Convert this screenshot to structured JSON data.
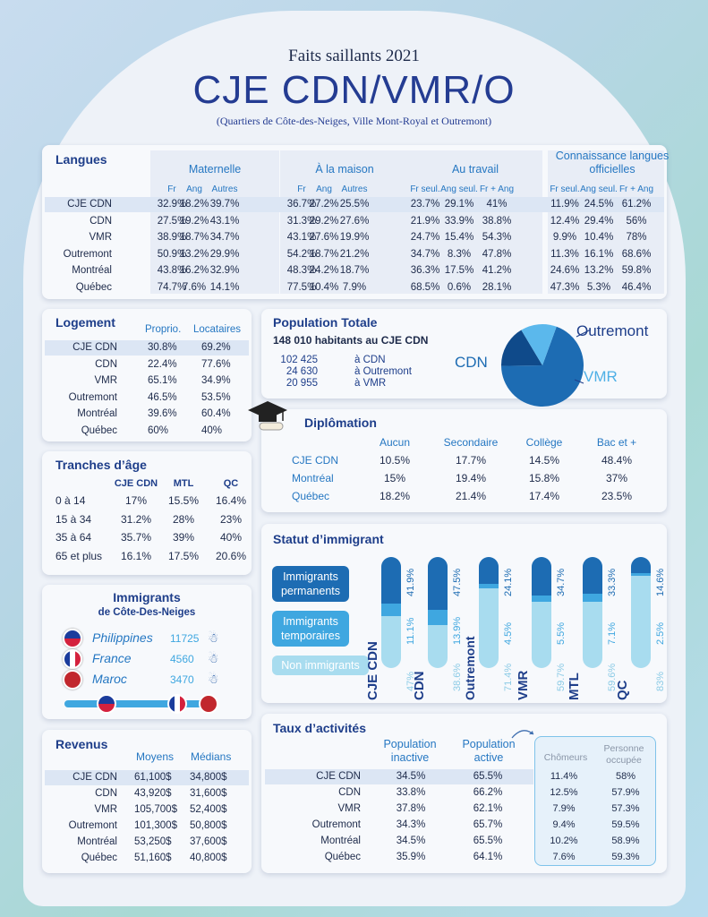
{
  "header": {
    "kicker": "Faits saillants 2021",
    "title": "CJE CDN/VMR/O",
    "subtitle": "(Quartiers de Côte-des-Neiges, Ville Mont-Royal et Outremont)"
  },
  "langues": {
    "title": "Langues",
    "groups": [
      "Maternelle",
      "À la maison",
      "Au travail",
      "Connaissance langues officielles"
    ],
    "subheads": [
      "Fr",
      "Ang",
      "Autres",
      "Fr",
      "Ang",
      "Autres",
      "Fr seul.",
      "Ang seul.",
      "Fr + Ang",
      "Fr seul.",
      "Ang seul.",
      "Fr + Ang"
    ],
    "rows": [
      {
        "label": "CJE CDN",
        "values": [
          "32.9%",
          "18.2%",
          "39.7%",
          "36.7%",
          "27.2%",
          "25.5%",
          "23.7%",
          "29.1%",
          "41%",
          "11.9%",
          "24.5%",
          "61.2%"
        ]
      },
      {
        "label": "CDN",
        "values": [
          "27.5%",
          "19.2%",
          "43.1%",
          "31.3%",
          "29.2%",
          "27.6%",
          "21.9%",
          "33.9%",
          "38.8%",
          "12.4%",
          "29.4%",
          "56%"
        ]
      },
      {
        "label": "VMR",
        "values": [
          "38.9%",
          "18.7%",
          "34.7%",
          "43.1%",
          "27.6%",
          "19.9%",
          "24.7%",
          "15.4%",
          "54.3%",
          "9.9%",
          "10.4%",
          "78%"
        ]
      },
      {
        "label": "Outremont",
        "values": [
          "50.9%",
          "13.2%",
          "29.9%",
          "54.2%",
          "18.7%",
          "21.2%",
          "34.7%",
          "8.3%",
          "47.8%",
          "11.3%",
          "16.1%",
          "68.6%"
        ]
      },
      {
        "label": "Montréal",
        "values": [
          "43.8%",
          "16.2%",
          "32.9%",
          "48.3%",
          "24.2%",
          "18.7%",
          "36.3%",
          "17.5%",
          "41.2%",
          "24.6%",
          "13.2%",
          "59.8%"
        ]
      },
      {
        "label": "Québec",
        "values": [
          "74.7%",
          "7.6%",
          "14.1%",
          "77.5%",
          "10.4%",
          "7.9%",
          "68.5%",
          "0.6%",
          "28.1%",
          "47.3%",
          "5.3%",
          "46.4%"
        ]
      }
    ]
  },
  "logement": {
    "title": "Logement",
    "cols": [
      "Proprio.",
      "Locataires"
    ],
    "rows": [
      [
        "CJE CDN",
        "30.8%",
        "69.2%"
      ],
      [
        "CDN",
        "22.4%",
        "77.6%"
      ],
      [
        "VMR",
        "65.1%",
        "34.9%"
      ],
      [
        "Outremont",
        "46.5%",
        "53.5%"
      ],
      [
        "Montréal",
        "39.6%",
        "60.4%"
      ],
      [
        "Québec",
        "60%",
        "40%"
      ]
    ]
  },
  "population": {
    "title": "Population Totale",
    "total": "148 010 habitants au CJE CDN",
    "rows": [
      [
        "102 425",
        "à CDN"
      ],
      [
        "24 630",
        "à Outremont"
      ],
      [
        "20 955",
        "à VMR"
      ]
    ],
    "pie_labels": [
      "CDN",
      "Outremont",
      "VMR"
    ]
  },
  "diplomation": {
    "title": "Diplômation",
    "cols": [
      "Aucun",
      "Secondaire",
      "Collège",
      "Bac et +"
    ],
    "rows": [
      [
        "CJE CDN",
        "10.5%",
        "17.7%",
        "14.5%",
        "48.4%"
      ],
      [
        "Montréal",
        "15%",
        "19.4%",
        "15.8%",
        "37%"
      ],
      [
        "Québec",
        "18.2%",
        "21.4%",
        "17.4%",
        "23.5%"
      ]
    ]
  },
  "ages": {
    "title": "Tranches d’âge",
    "cols": [
      "CJE CDN",
      "MTL",
      "QC"
    ],
    "rows": [
      [
        "0 à 14",
        "17%",
        "15.5%",
        "16.4%"
      ],
      [
        "15 à 34",
        "31.2%",
        "28%",
        "23%"
      ],
      [
        "35 à 64",
        "35.7%",
        "39%",
        "40%"
      ],
      [
        "65 et plus",
        "16.1%",
        "17.5%",
        "20.6%"
      ]
    ]
  },
  "immigrants": {
    "title": "Immigrants",
    "subtitle": "de Côte-Des-Neiges",
    "rows": [
      [
        "Philippines",
        "11725"
      ],
      [
        "France",
        "4560"
      ],
      [
        "Maroc",
        "3470"
      ]
    ]
  },
  "revenus": {
    "title": "Revenus",
    "cols": [
      "Moyens",
      "Médians"
    ],
    "rows": [
      [
        "CJE CDN",
        "61,100$",
        "34,800$"
      ],
      [
        "CDN",
        "43,920$",
        "31,600$"
      ],
      [
        "VMR",
        "105,700$",
        "52,400$"
      ],
      [
        "Outremont",
        "101,300$",
        "50,800$"
      ],
      [
        "Montréal",
        "53,250$",
        "37,600$"
      ],
      [
        "Québec",
        "51,160$",
        "40,800$"
      ]
    ]
  },
  "taux": {
    "title": "Taux d’activités",
    "cols": [
      "Population inactive",
      "Population active"
    ],
    "subcols": [
      "Chômeurs",
      "Personne occupée"
    ],
    "rows": [
      [
        "CJE CDN",
        "34.5%",
        "65.5%",
        "11.4%",
        "58%"
      ],
      [
        "CDN",
        "33.8%",
        "66.2%",
        "12.5%",
        "57.9%"
      ],
      [
        "VMR",
        "37.8%",
        "62.1%",
        "7.9%",
        "57.3%"
      ],
      [
        "Outremont",
        "34.3%",
        "65.7%",
        "9.4%",
        "59.5%"
      ],
      [
        "Montréal",
        "34.5%",
        "65.5%",
        "10.2%",
        "58.9%"
      ],
      [
        "Québec",
        "35.9%",
        "64.1%",
        "7.6%",
        "59.3%"
      ]
    ]
  },
  "statut": {
    "title": "Statut d’immigrant",
    "legend": [
      "Immigrants permanents",
      "Immigrants temporaires",
      "Non immigrants"
    ]
  },
  "chart_data": [
    {
      "type": "pie",
      "title": "Population Totale",
      "categories": [
        "CDN",
        "Outremont",
        "VMR"
      ],
      "values": [
        102425,
        24630,
        20955
      ]
    },
    {
      "type": "bar",
      "title": "Statut d’immigrant",
      "categories": [
        "CJE CDN",
        "CDN",
        "Outremont",
        "VMR",
        "MTL",
        "QC"
      ],
      "series": [
        {
          "name": "Immigrants permanents",
          "values": [
            41.9,
            47.5,
            24.1,
            34.7,
            33.3,
            14.6
          ],
          "labels": [
            "41.9%",
            "47.5%",
            "24.1%",
            "34.7%",
            "33.3%",
            "14.6%"
          ]
        },
        {
          "name": "Immigrants temporaires",
          "values": [
            11.1,
            13.9,
            4.5,
            5.5,
            7.1,
            2.5
          ],
          "labels": [
            "11.1%",
            "13.9%",
            "4.5%",
            "5.5%",
            "7.1%",
            "2.5%"
          ]
        },
        {
          "name": "Non immigrants",
          "values": [
            47,
            38.6,
            71.4,
            59.7,
            59.6,
            83
          ],
          "labels": [
            "47%",
            "38.6%",
            "71.4%",
            "59.7%",
            "59.6%",
            "83%"
          ]
        }
      ],
      "colors": [
        "#1d6cb3",
        "#3fa7e0",
        "#a8dcef"
      ]
    }
  ]
}
